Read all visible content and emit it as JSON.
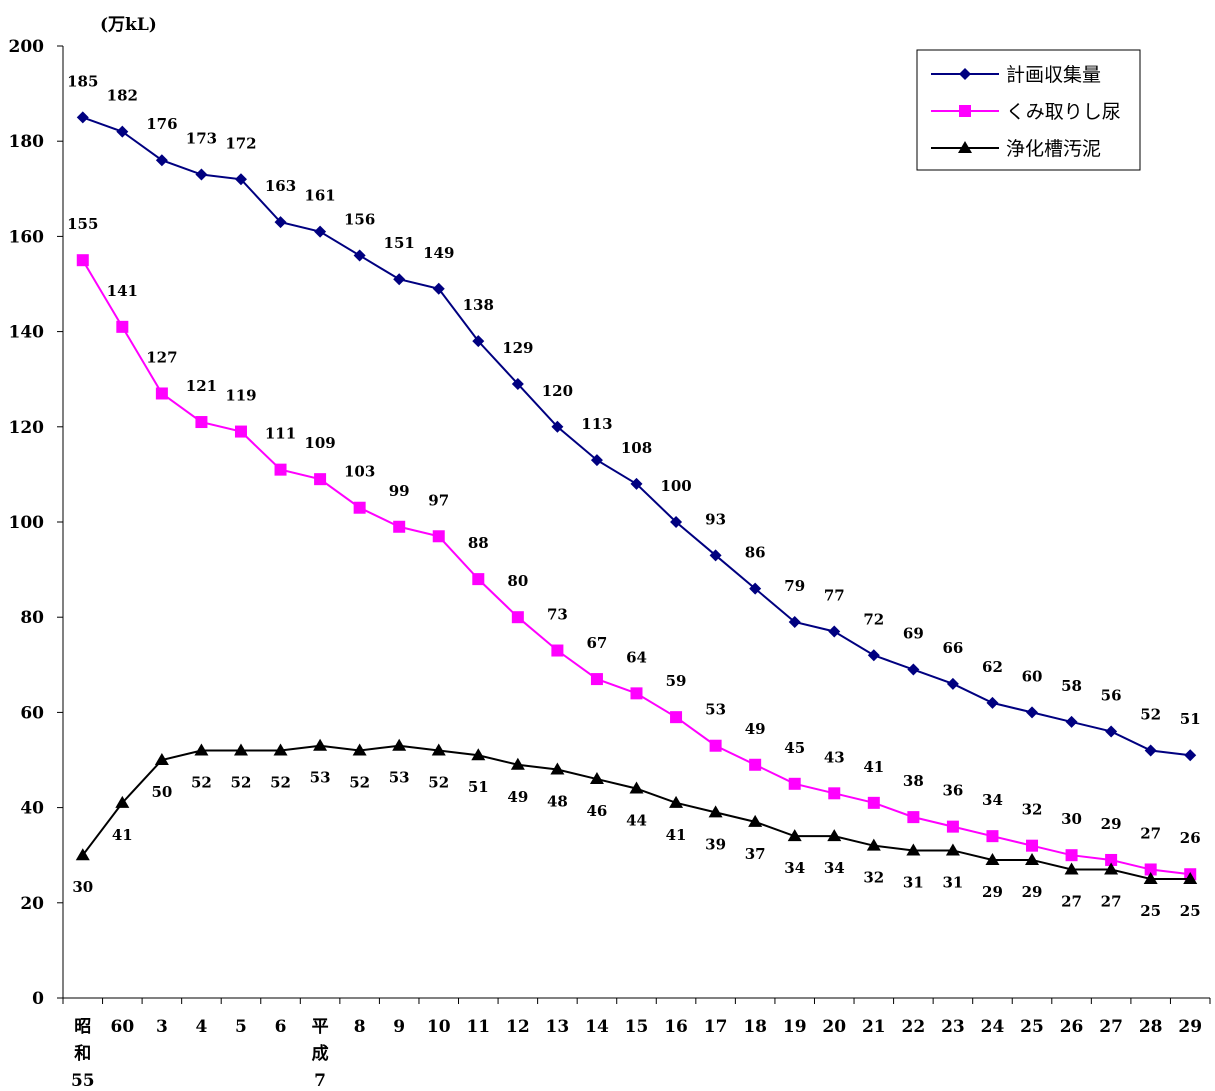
{
  "chart_data": {
    "type": "line",
    "unit_label": "(万kL)",
    "ylim": [
      0,
      200
    ],
    "yticks": [
      "0",
      "20",
      "40",
      "60",
      "80",
      "100",
      "120",
      "140",
      "160",
      "180",
      "200"
    ],
    "categories": [
      [
        "昭",
        "和",
        "55"
      ],
      [
        "60"
      ],
      [
        "3"
      ],
      [
        "4"
      ],
      [
        "5"
      ],
      [
        "6"
      ],
      [
        "平",
        "成",
        "7"
      ],
      [
        "8"
      ],
      [
        "9"
      ],
      [
        "10"
      ],
      [
        "11"
      ],
      [
        "12"
      ],
      [
        "13"
      ],
      [
        "14"
      ],
      [
        "15"
      ],
      [
        "16"
      ],
      [
        "17"
      ],
      [
        "18"
      ],
      [
        "19"
      ],
      [
        "20"
      ],
      [
        "21"
      ],
      [
        "22"
      ],
      [
        "23"
      ],
      [
        "24"
      ],
      [
        "25"
      ],
      [
        "26"
      ],
      [
        "27"
      ],
      [
        "28"
      ],
      [
        "29"
      ]
    ],
    "legend_position": "top-right",
    "series": [
      {
        "name": "計画収集量",
        "color": "#000080",
        "marker": "diamond",
        "label_position": "above",
        "values": [
          185,
          182,
          176,
          173,
          172,
          163,
          161,
          156,
          151,
          149,
          138,
          129,
          120,
          113,
          108,
          100,
          93,
          86,
          79,
          77,
          72,
          69,
          66,
          62,
          60,
          58,
          56,
          52,
          51
        ]
      },
      {
        "name": "くみ取りし尿",
        "color": "#ff00ff",
        "marker": "square",
        "label_position": "above",
        "values": [
          155,
          141,
          127,
          121,
          119,
          111,
          109,
          103,
          99,
          97,
          88,
          80,
          73,
          67,
          64,
          59,
          53,
          49,
          45,
          43,
          41,
          38,
          36,
          34,
          32,
          30,
          29,
          27,
          26
        ]
      },
      {
        "name": "浄化槽汚泥",
        "color": "#000000",
        "marker": "triangle",
        "label_position": "below",
        "values": [
          30,
          41,
          50,
          52,
          52,
          52,
          53,
          52,
          53,
          52,
          51,
          49,
          48,
          46,
          44,
          41,
          39,
          37,
          34,
          34,
          32,
          31,
          31,
          29,
          29,
          27,
          27,
          25,
          25
        ]
      }
    ]
  }
}
